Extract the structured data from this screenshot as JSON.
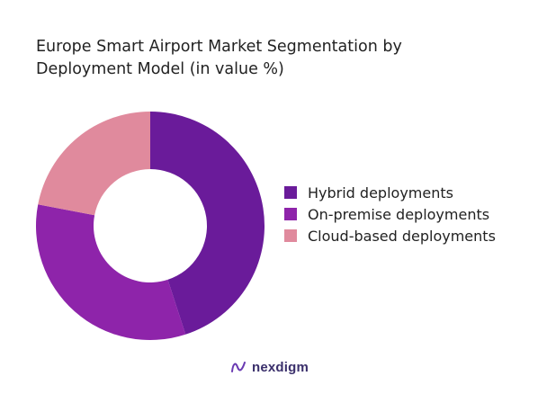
{
  "chart_data": {
    "type": "pie",
    "subtype": "donut",
    "title": [
      "Europe Smart Airport Market Segmentation by",
      "Deployment Model (in value %)"
    ],
    "categories": [
      "Hybrid deployments",
      "On-premise deployments",
      "Cloud-based deployments"
    ],
    "values": [
      45,
      33,
      22
    ],
    "colors": [
      "#6a1b9a",
      "#8e24aa",
      "#e08a9d"
    ],
    "legend_position": "right"
  },
  "brand": {
    "name": "nexdigm",
    "icon": "nexdigm-logo-icon"
  }
}
